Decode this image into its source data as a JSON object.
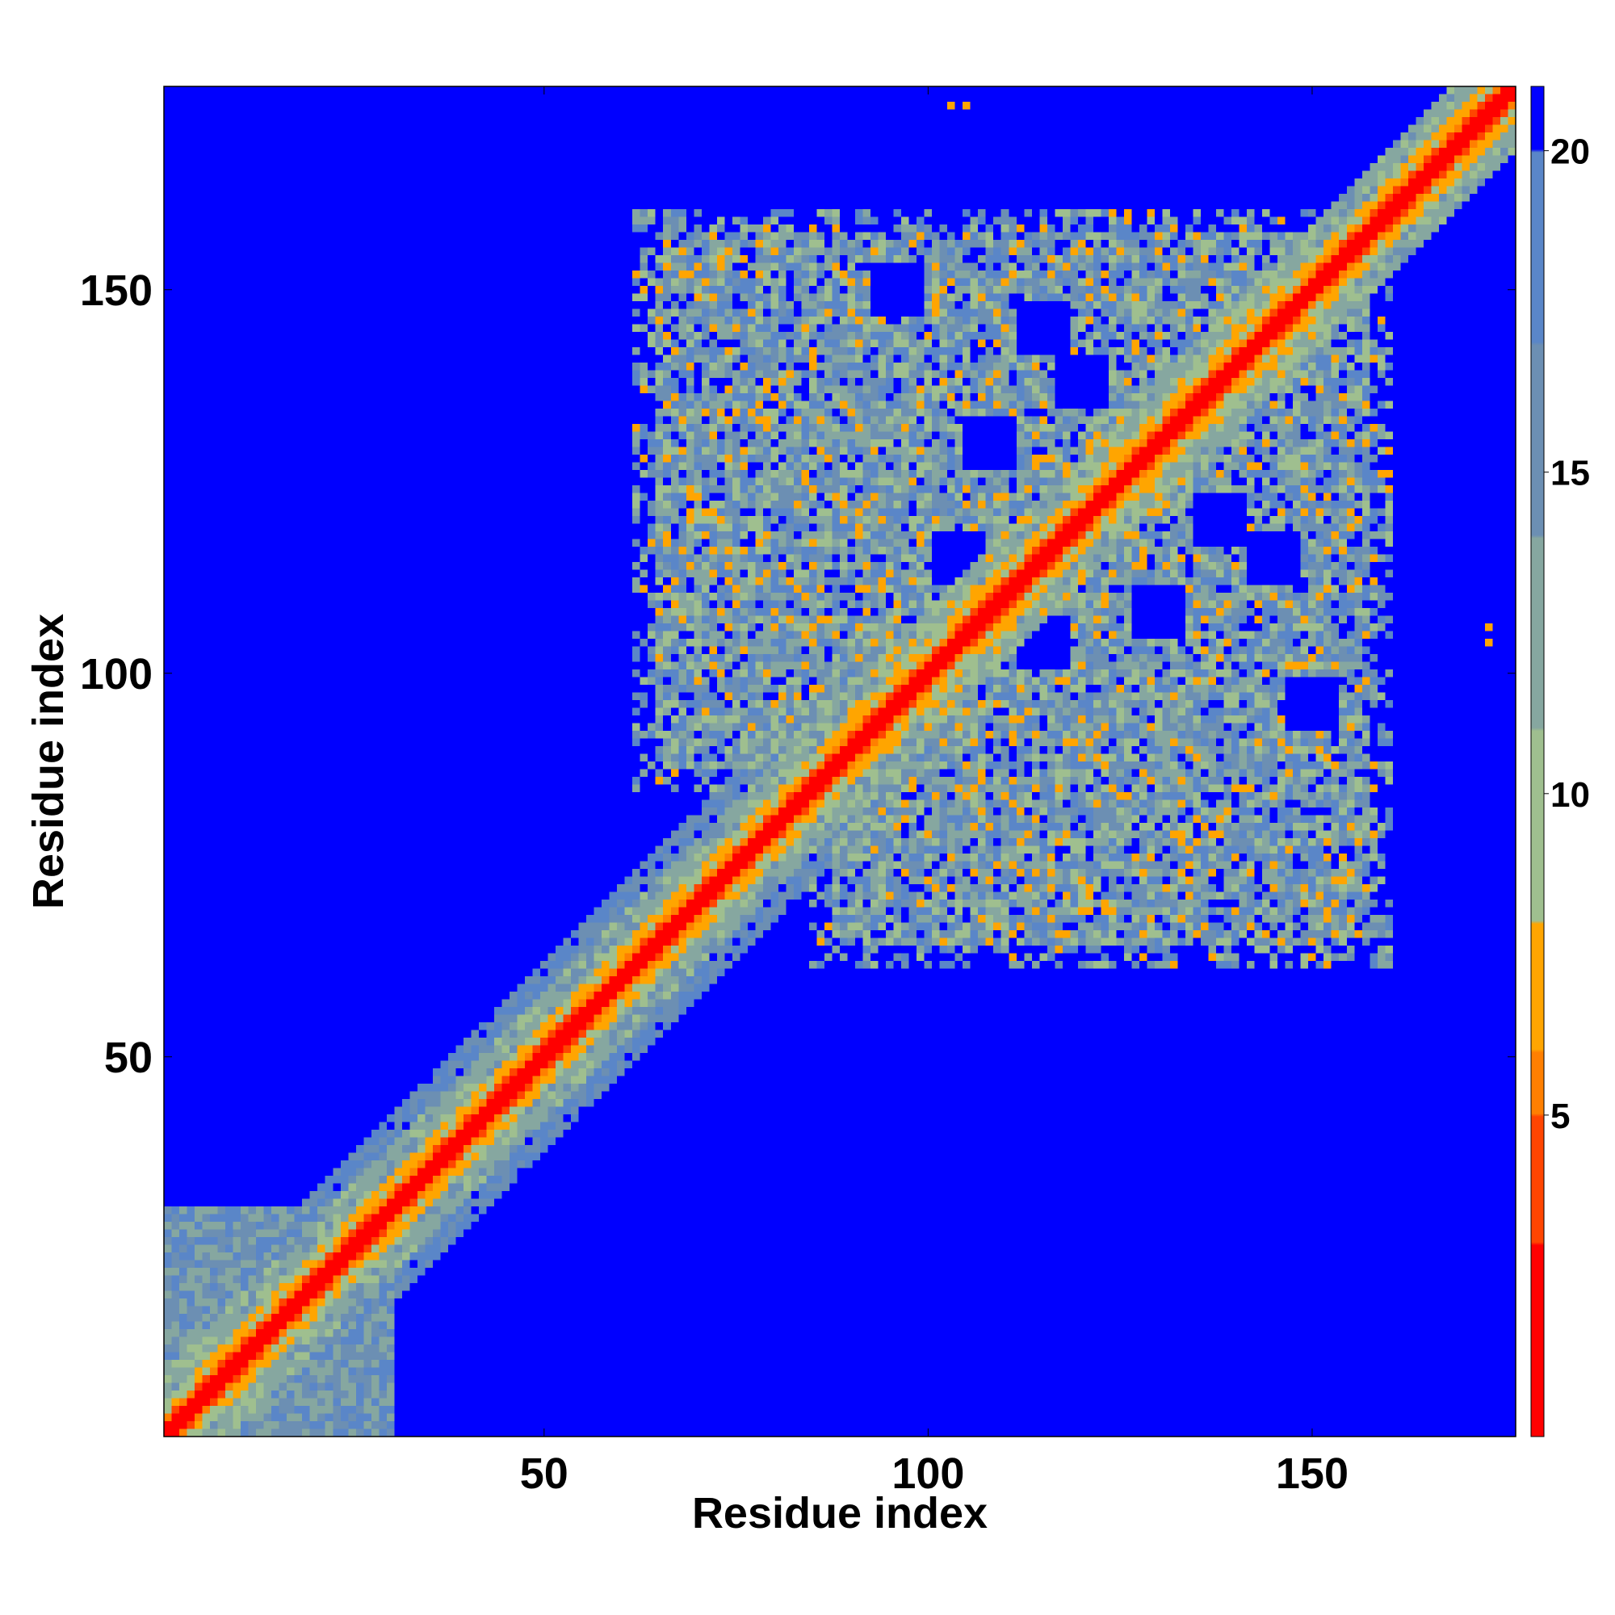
{
  "chart_data": {
    "type": "heatmap",
    "title": "",
    "xlabel": "Residue index",
    "ylabel": "Residue index",
    "n_residues": 176,
    "xlim": [
      0.5,
      176.5
    ],
    "ylim": [
      0.5,
      176.5
    ],
    "x_ticks": [
      50,
      100,
      150
    ],
    "y_ticks": [
      50,
      100,
      150
    ],
    "x_tick_labels": [
      "50",
      "100",
      "150"
    ],
    "y_tick_labels": [
      "50",
      "100",
      "150"
    ],
    "grid": false,
    "legend": "none",
    "colorbar": {
      "placement": "right",
      "range": [
        0,
        21
      ],
      "ticks": [
        5,
        10,
        15,
        20
      ],
      "tick_labels": [
        "5",
        "10",
        "15",
        "20"
      ],
      "colors": [
        {
          "max": 3,
          "color": "#ff0000"
        },
        {
          "max": 5,
          "color": "#ff4500"
        },
        {
          "max": 6,
          "color": "#ff7f00"
        },
        {
          "max": 8,
          "color": "#ffa500"
        },
        {
          "max": 11,
          "color": "#9fbf8f"
        },
        {
          "max": 14,
          "color": "#86a7a0"
        },
        {
          "max": 17,
          "color": "#6c8fb3"
        },
        {
          "max": 20,
          "color": "#5a86c8"
        },
        {
          "max": 21,
          "color": "#0000ff"
        }
      ]
    },
    "diagonal_band": {
      "residue_range": [
        1,
        176
      ],
      "value_at_diagonal": 0
    },
    "contact_regions": [
      {
        "residues_x": [
          1,
          30
        ],
        "residues_y": [
          1,
          30
        ]
      },
      {
        "residues_x": [
          30,
          95
        ],
        "residues_y": [
          30,
          95
        ]
      },
      {
        "residues_x": [
          60,
          160
        ],
        "residues_y": [
          60,
          160
        ]
      }
    ],
    "isolated_contacts": [
      {
        "x": 103,
        "y": 174
      },
      {
        "x": 105,
        "y": 174
      },
      {
        "x": 173,
        "y": 104
      },
      {
        "x": 173,
        "y": 106
      }
    ]
  }
}
